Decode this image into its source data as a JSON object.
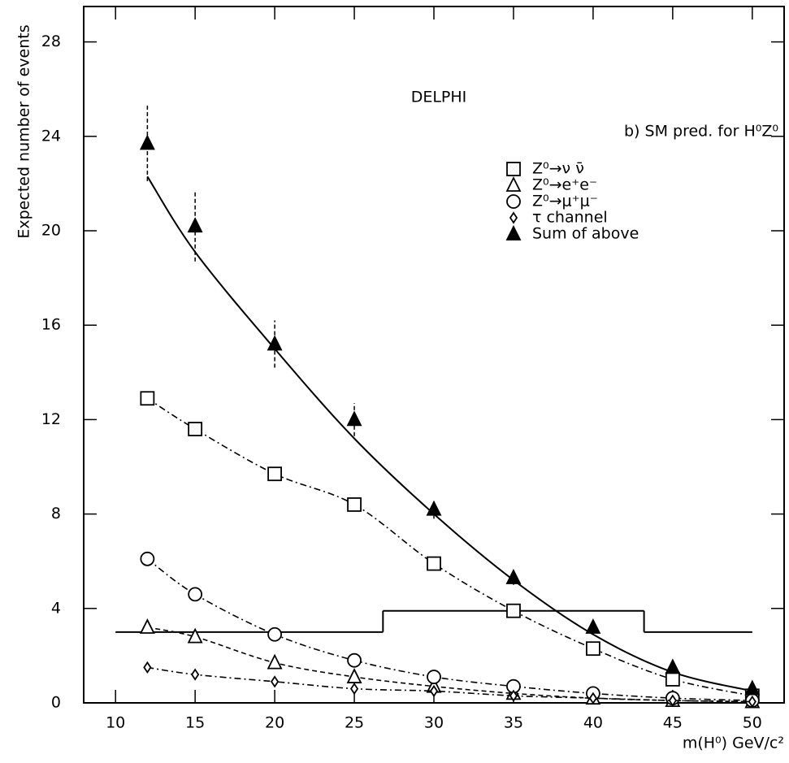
{
  "chart_data": {
    "type": "line",
    "annotations": [
      "DELPHI",
      "b) SM pred. for H⁰Z⁰"
    ],
    "xlabel": "m(H⁰) GeV/c²",
    "ylabel": "Expected number of events",
    "xlim": [
      8,
      52
    ],
    "ylim": [
      0,
      29.5
    ],
    "xticks": [
      10,
      15,
      20,
      25,
      30,
      35,
      40,
      45,
      50
    ],
    "yticks": [
      0,
      4,
      8,
      12,
      16,
      20,
      24,
      28
    ],
    "x": [
      12,
      15,
      20,
      25,
      30,
      35,
      40,
      45,
      50
    ],
    "series": [
      {
        "name": "Z⁰→ν ν̄",
        "marker": "square",
        "dash": "8 4 2 4",
        "color": "#000000",
        "values": [
          12.9,
          11.6,
          9.7,
          8.4,
          5.9,
          3.9,
          2.3,
          1.0,
          0.3
        ]
      },
      {
        "name": "Z⁰→e⁺e⁻",
        "marker": "triangle",
        "dash": "6 4",
        "color": "#000000",
        "values": [
          3.2,
          2.8,
          1.7,
          1.1,
          0.7,
          0.4,
          0.2,
          0.1,
          0.05
        ]
      },
      {
        "name": "Z⁰→μ⁺μ⁻",
        "marker": "circle",
        "dash": "8 4 2 4",
        "color": "#000000",
        "values": [
          6.1,
          4.6,
          2.9,
          1.8,
          1.1,
          0.7,
          0.4,
          0.2,
          0.1
        ]
      },
      {
        "name": "τ channel",
        "marker": "diamond",
        "dash": "8 4 2 4",
        "color": "#000000",
        "values": [
          1.5,
          1.2,
          0.9,
          0.6,
          0.5,
          0.3,
          0.2,
          0.1,
          0.05
        ]
      },
      {
        "name": "Sum of above",
        "marker": "filled-triangle",
        "color": "#000000",
        "values": [
          23.7,
          20.2,
          15.2,
          12.0,
          8.2,
          5.3,
          3.2,
          1.5,
          0.6
        ],
        "errors": [
          1.6,
          1.5,
          1.0,
          0.7,
          0.4,
          0.3,
          0.2,
          0.2,
          0.1
        ]
      }
    ],
    "fit": {
      "x": [
        12,
        15,
        20,
        25,
        30,
        35,
        40,
        45,
        50
      ],
      "values": [
        22.3,
        19.1,
        15.0,
        11.2,
        8.0,
        5.2,
        2.9,
        1.3,
        0.5
      ]
    },
    "limit_steps": {
      "edges": [
        10,
        26.8,
        43.2,
        50
      ],
      "values": [
        3.0,
        3.9,
        3.0
      ]
    }
  }
}
